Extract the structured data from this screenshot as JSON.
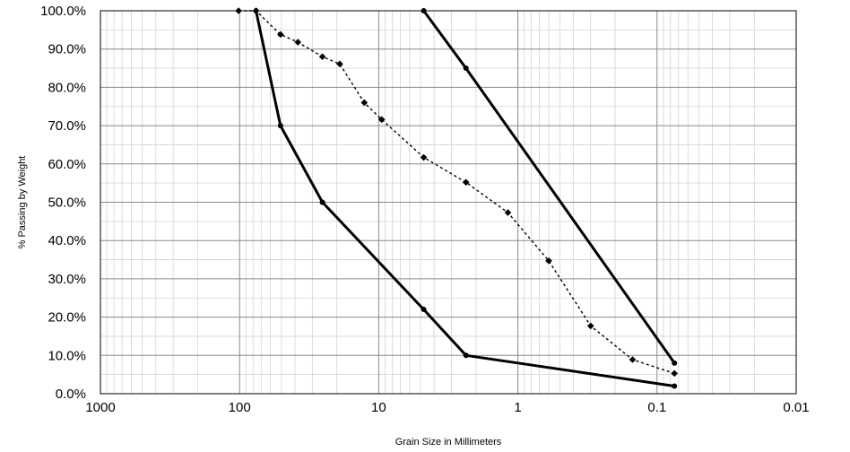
{
  "chart_data": {
    "type": "line",
    "title": "",
    "xlabel": "Grain Size in Millimeters",
    "ylabel": "% Passing by Weight",
    "x_scale": "log",
    "x_reversed": true,
    "xlim": [
      1000,
      0.01
    ],
    "ylim": [
      0,
      100
    ],
    "grid": true,
    "legend": "none",
    "x_ticks": [
      1000,
      100,
      10,
      1,
      0.1,
      0.01
    ],
    "x_tick_labels": [
      "1000",
      "100",
      "10",
      "1",
      "0.1",
      "0.01"
    ],
    "y_ticks": [
      0,
      10,
      20,
      30,
      40,
      50,
      60,
      70,
      80,
      90,
      100
    ],
    "y_tick_labels": [
      "0.0%",
      "10.0%",
      "20.0%",
      "30.0%",
      "40.0%",
      "50.0%",
      "60.0%",
      "70.0%",
      "80.0%",
      "90.0%",
      "100.0%"
    ],
    "series": [
      {
        "style": "solid",
        "color": "#000000",
        "x": [
          76.2,
          50.8,
          25.4,
          4.75,
          2.36,
          0.075
        ],
        "y": [
          100,
          70,
          50,
          22,
          10,
          2
        ]
      },
      {
        "style": "solid",
        "color": "#000000",
        "x": [
          4.75,
          2.36,
          0.075
        ],
        "y": [
          100,
          85,
          8
        ]
      },
      {
        "style": "dotted",
        "color": "#000000",
        "marker": "diamond",
        "x": [
          101.6,
          76.2,
          50.8,
          38.1,
          25.4,
          19.05,
          12.7,
          9.525,
          4.75,
          2.36,
          1.18,
          0.6,
          0.3,
          0.15,
          0.075
        ],
        "y": [
          100,
          100,
          93.8,
          91.8,
          88,
          86.1,
          76,
          71.6,
          61.7,
          55.2,
          47.3,
          34.7,
          17.7,
          8.9,
          5.3
        ]
      }
    ]
  }
}
